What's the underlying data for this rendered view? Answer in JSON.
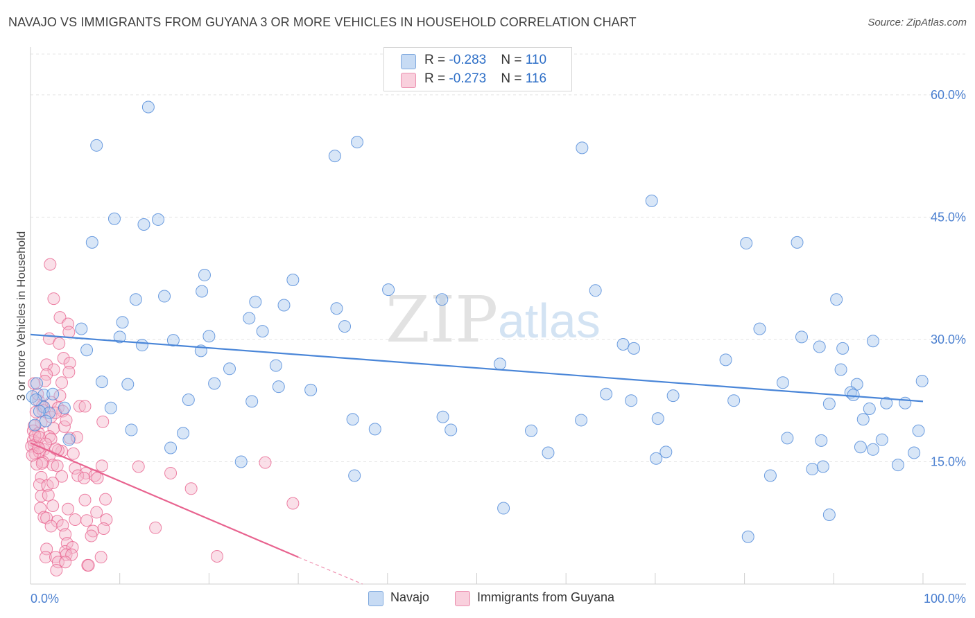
{
  "header": {
    "title": "NAVAJO VS IMMIGRANTS FROM GUYANA 3 OR MORE VEHICLES IN HOUSEHOLD CORRELATION CHART",
    "source": "Source: ZipAtlas.com"
  },
  "watermark": {
    "zip": "ZIP",
    "atlas": "atlas"
  },
  "legend": {
    "rows": [
      {
        "r_label": "R = ",
        "r_value": "-0.283",
        "n_label": "N = ",
        "n_value": "110",
        "color": "#a9c8ee"
      },
      {
        "r_label": "R = ",
        "r_value": "-0.273",
        "n_label": "N = ",
        "n_value": "116",
        "color": "#f5b8cb"
      }
    ]
  },
  "bottom_legend": [
    {
      "label": "Navajo",
      "color": "#a9c8ee"
    },
    {
      "label": "Immigrants from Guyana",
      "color": "#f5b8cb"
    }
  ],
  "chart_data": {
    "type": "scatter",
    "title": "NAVAJO VS IMMIGRANTS FROM GUYANA 3 OR MORE VEHICLES IN HOUSEHOLD CORRELATION CHART",
    "xlabel": "",
    "ylabel": "3 or more Vehicles in Household",
    "xlim": [
      0,
      100
    ],
    "ylim": [
      0,
      65
    ],
    "x_tick_labels": [
      "0.0%",
      "100.0%"
    ],
    "y_ticks": [
      15,
      30,
      45,
      60
    ],
    "y_tick_labels": [
      "15.0%",
      "30.0%",
      "45.0%",
      "60.0%"
    ],
    "grid": true,
    "legend_position": "top-center",
    "colors": {
      "navajo": "#4a86d8",
      "guyana": "#e8638f",
      "navajo_fill": "#a9c8ee",
      "guyana_fill": "#f5b8cb"
    },
    "series": [
      {
        "name": "Navajo",
        "trend": {
          "x": [
            0,
            100
          ],
          "y": [
            30.6,
            22.4
          ]
        },
        "points": [
          [
            13.2,
            58.5
          ],
          [
            7.4,
            53.8
          ],
          [
            36.6,
            54.2
          ],
          [
            34.1,
            52.5
          ],
          [
            61.8,
            53.5
          ],
          [
            69.6,
            47.0
          ],
          [
            9.4,
            44.8
          ],
          [
            12.7,
            44.1
          ],
          [
            14.3,
            44.7
          ],
          [
            6.9,
            41.9
          ],
          [
            80.2,
            41.8
          ],
          [
            85.9,
            41.9
          ],
          [
            19.5,
            37.9
          ],
          [
            29.4,
            37.3
          ],
          [
            19.2,
            35.9
          ],
          [
            40.1,
            36.1
          ],
          [
            63.3,
            36.0
          ],
          [
            11.8,
            34.9
          ],
          [
            15.0,
            35.3
          ],
          [
            25.2,
            34.6
          ],
          [
            46.1,
            34.9
          ],
          [
            28.4,
            34.2
          ],
          [
            34.3,
            33.8
          ],
          [
            90.3,
            34.9
          ],
          [
            24.5,
            32.6
          ],
          [
            10.3,
            32.1
          ],
          [
            35.2,
            31.6
          ],
          [
            5.7,
            31.3
          ],
          [
            26.0,
            31.0
          ],
          [
            81.7,
            31.3
          ],
          [
            10.0,
            30.3
          ],
          [
            16.0,
            29.9
          ],
          [
            20.0,
            30.4
          ],
          [
            86.4,
            30.3
          ],
          [
            12.5,
            29.3
          ],
          [
            66.4,
            29.4
          ],
          [
            94.4,
            29.8
          ],
          [
            6.3,
            28.7
          ],
          [
            19.1,
            28.6
          ],
          [
            67.6,
            28.9
          ],
          [
            88.4,
            29.1
          ],
          [
            91.0,
            28.9
          ],
          [
            52.6,
            27.0
          ],
          [
            77.9,
            27.5
          ],
          [
            22.3,
            26.4
          ],
          [
            27.5,
            26.8
          ],
          [
            90.8,
            26.3
          ],
          [
            0.7,
            24.6
          ],
          [
            8.0,
            24.8
          ],
          [
            10.9,
            24.5
          ],
          [
            20.6,
            24.6
          ],
          [
            27.8,
            24.2
          ],
          [
            84.3,
            24.7
          ],
          [
            92.6,
            24.5
          ],
          [
            1.5,
            23.2
          ],
          [
            2.5,
            23.3
          ],
          [
            0.2,
            23.0
          ],
          [
            31.4,
            23.8
          ],
          [
            64.5,
            23.3
          ],
          [
            72.0,
            23.1
          ],
          [
            91.9,
            23.5
          ],
          [
            92.2,
            23.2
          ],
          [
            17.7,
            22.6
          ],
          [
            24.8,
            22.4
          ],
          [
            67.3,
            22.5
          ],
          [
            78.8,
            22.5
          ],
          [
            98.0,
            22.2
          ],
          [
            1.5,
            21.7
          ],
          [
            3.8,
            21.6
          ],
          [
            2.1,
            21.0
          ],
          [
            9.0,
            21.6
          ],
          [
            89.5,
            22.1
          ],
          [
            95.9,
            22.2
          ],
          [
            94.0,
            21.5
          ],
          [
            36.1,
            20.2
          ],
          [
            46.2,
            20.5
          ],
          [
            61.7,
            20.1
          ],
          [
            70.3,
            20.3
          ],
          [
            1.7,
            20.0
          ],
          [
            4.3,
            17.7
          ],
          [
            38.6,
            19.0
          ],
          [
            47.1,
            18.9
          ],
          [
            56.1,
            18.8
          ],
          [
            11.3,
            18.9
          ],
          [
            17.1,
            18.5
          ],
          [
            93.3,
            20.2
          ],
          [
            99.5,
            18.8
          ],
          [
            84.8,
            17.9
          ],
          [
            95.4,
            17.7
          ],
          [
            88.6,
            17.6
          ],
          [
            15.7,
            16.7
          ],
          [
            58.0,
            16.1
          ],
          [
            71.2,
            16.2
          ],
          [
            93.0,
            16.8
          ],
          [
            94.4,
            16.5
          ],
          [
            99.0,
            16.1
          ],
          [
            23.6,
            15.0
          ],
          [
            70.1,
            15.4
          ],
          [
            87.6,
            14.1
          ],
          [
            88.8,
            14.4
          ],
          [
            97.2,
            14.6
          ],
          [
            36.3,
            13.3
          ],
          [
            82.9,
            13.3
          ],
          [
            53.0,
            9.3
          ],
          [
            89.5,
            8.5
          ],
          [
            80.4,
            5.8
          ],
          [
            99.9,
            24.9
          ],
          [
            0.5,
            19.5
          ],
          [
            1.0,
            21.2
          ],
          [
            0.6,
            22.6
          ]
        ]
      },
      {
        "name": "Immigrants from Guyana",
        "trend": {
          "x": [
            0,
            30
          ],
          "y": [
            17.3,
            3.3
          ],
          "dashed_to": {
            "x": 37.2,
            "y": 0
          }
        },
        "points": [
          [
            2.2,
            39.2
          ],
          [
            2.6,
            35.0
          ],
          [
            3.3,
            32.7
          ],
          [
            4.2,
            31.9
          ],
          [
            4.3,
            30.9
          ],
          [
            2.1,
            30.1
          ],
          [
            3.2,
            29.5
          ],
          [
            3.7,
            27.7
          ],
          [
            4.4,
            27.1
          ],
          [
            1.8,
            26.9
          ],
          [
            2.6,
            26.3
          ],
          [
            4.3,
            26.0
          ],
          [
            1.8,
            25.7
          ],
          [
            1.6,
            24.9
          ],
          [
            3.5,
            24.7
          ],
          [
            0.4,
            24.6
          ],
          [
            3.3,
            23.1
          ],
          [
            0.9,
            22.5
          ],
          [
            2.3,
            22.3
          ],
          [
            1.3,
            21.8
          ],
          [
            3.1,
            21.6
          ],
          [
            5.5,
            21.8
          ],
          [
            6.1,
            21.8
          ],
          [
            1.4,
            21.3
          ],
          [
            0.6,
            21.1
          ],
          [
            3.6,
            21.2
          ],
          [
            2.3,
            20.5
          ],
          [
            8.1,
            19.9
          ],
          [
            1.2,
            19.8
          ],
          [
            0.4,
            19.4
          ],
          [
            2.6,
            19.1
          ],
          [
            0.3,
            18.8
          ],
          [
            0.9,
            18.5
          ],
          [
            2.1,
            18.1
          ],
          [
            2.3,
            17.8
          ],
          [
            4.4,
            17.9
          ],
          [
            0.3,
            17.6
          ],
          [
            0.7,
            17.3
          ],
          [
            0.4,
            17.0
          ],
          [
            0.1,
            16.9
          ],
          [
            1.5,
            16.5
          ],
          [
            3.5,
            16.3
          ],
          [
            0.5,
            16.0
          ],
          [
            1.0,
            16.2
          ],
          [
            3.1,
            16.4
          ],
          [
            2.1,
            15.7
          ],
          [
            1.4,
            15.0
          ],
          [
            0.7,
            14.7
          ],
          [
            2.5,
            14.6
          ],
          [
            5.0,
            14.2
          ],
          [
            3.0,
            14.5
          ],
          [
            6.2,
            13.6
          ],
          [
            15.7,
            13.6
          ],
          [
            1.2,
            13.1
          ],
          [
            3.5,
            13.2
          ],
          [
            5.3,
            13.3
          ],
          [
            7.2,
            13.3
          ],
          [
            18.0,
            11.7
          ],
          [
            1.0,
            12.2
          ],
          [
            6.0,
            13.0
          ],
          [
            7.5,
            13.0
          ],
          [
            1.2,
            10.8
          ],
          [
            2.0,
            10.9
          ],
          [
            6.1,
            10.3
          ],
          [
            8.4,
            10.4
          ],
          [
            1.1,
            9.3
          ],
          [
            2.5,
            9.6
          ],
          [
            4.2,
            9.2
          ],
          [
            7.4,
            8.8
          ],
          [
            1.5,
            8.2
          ],
          [
            3.0,
            7.7
          ],
          [
            1.8,
            8.1
          ],
          [
            5.0,
            7.9
          ],
          [
            6.3,
            7.8
          ],
          [
            8.5,
            7.9
          ],
          [
            14.0,
            6.9
          ],
          [
            2.3,
            7.1
          ],
          [
            3.6,
            7.2
          ],
          [
            7.0,
            6.5
          ],
          [
            8.2,
            6.8
          ],
          [
            3.9,
            6.1
          ],
          [
            6.8,
            5.9
          ],
          [
            4.1,
            5.0
          ],
          [
            1.8,
            4.3
          ],
          [
            3.9,
            4.0
          ],
          [
            4.7,
            4.5
          ],
          [
            1.7,
            3.3
          ],
          [
            2.8,
            3.3
          ],
          [
            4.0,
            3.6
          ],
          [
            4.6,
            3.6
          ],
          [
            7.9,
            3.3
          ],
          [
            20.9,
            3.4
          ],
          [
            3.1,
            2.7
          ],
          [
            3.9,
            2.7
          ],
          [
            2.9,
            1.7
          ],
          [
            6.4,
            2.3
          ],
          [
            6.5,
            2.3
          ],
          [
            2.8,
            16.6
          ],
          [
            1.9,
            12.1
          ],
          [
            8.0,
            14.5
          ],
          [
            12.1,
            14.4
          ],
          [
            26.3,
            14.9
          ],
          [
            29.4,
            9.9
          ],
          [
            0.5,
            18.2
          ],
          [
            1.0,
            18.0
          ],
          [
            0.2,
            15.8
          ],
          [
            3.8,
            19.3
          ],
          [
            5.2,
            18.0
          ],
          [
            4.0,
            20.1
          ],
          [
            2.8,
            21.0
          ],
          [
            0.8,
            23.3
          ],
          [
            1.3,
            14.8
          ],
          [
            1.7,
            17.2
          ],
          [
            0.9,
            16.7
          ],
          [
            2.5,
            12.4
          ],
          [
            4.8,
            16.0
          ]
        ]
      }
    ]
  }
}
